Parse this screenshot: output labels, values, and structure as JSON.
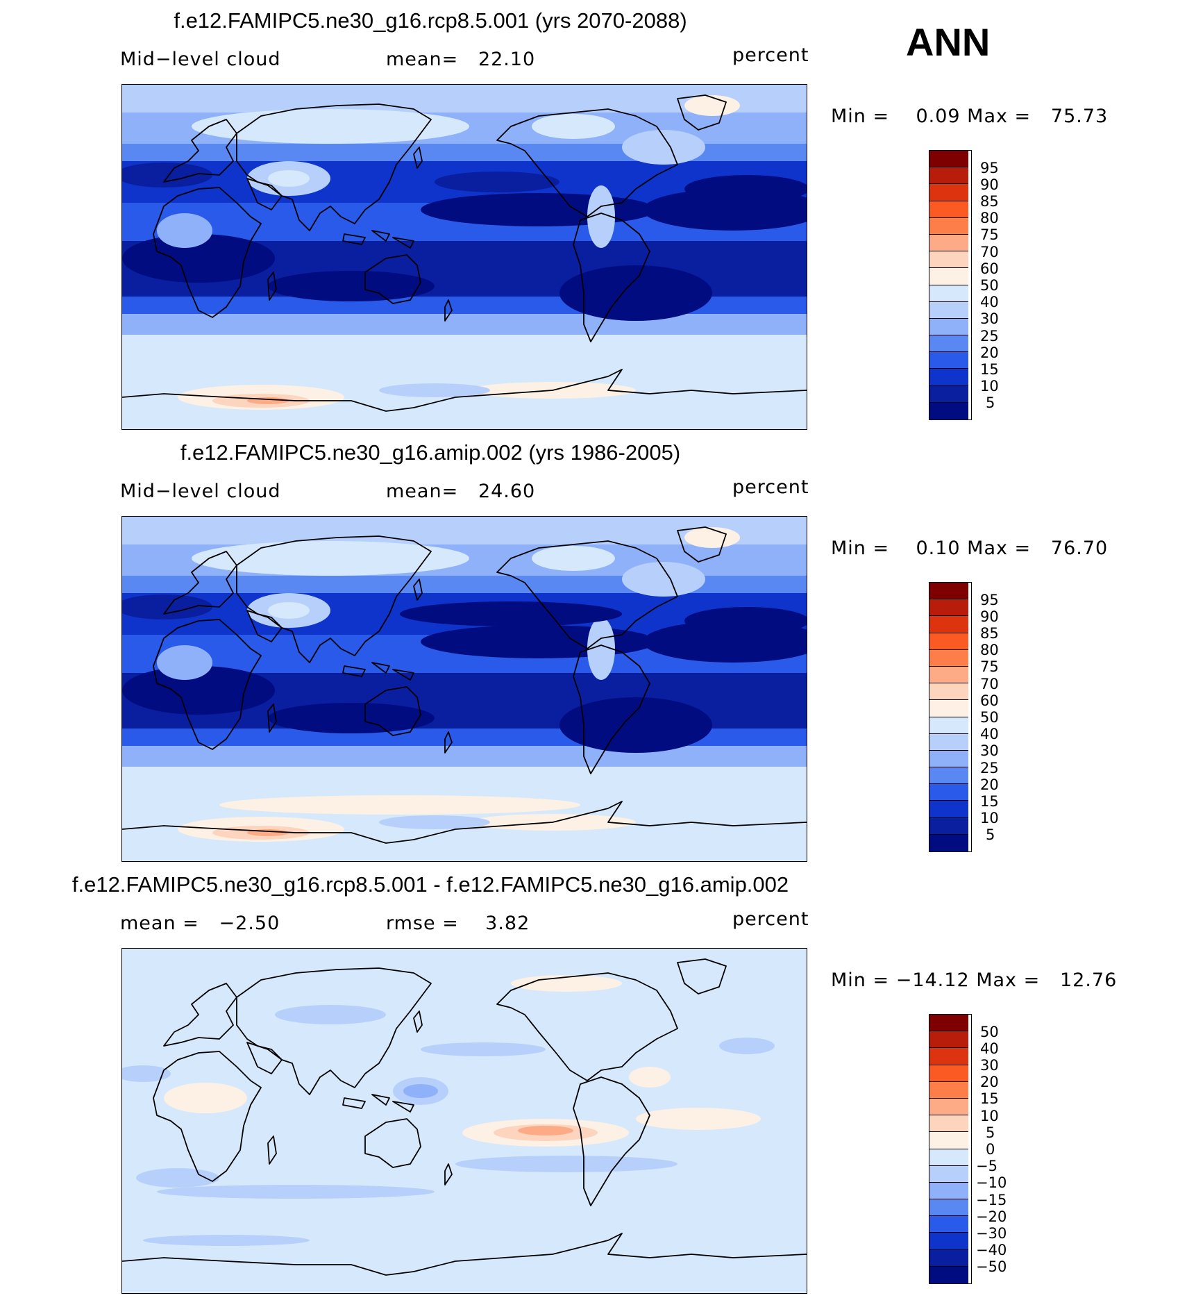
{
  "season": "ANN",
  "panels": [
    {
      "title": "f.e12.FAMIPC5.ne30_g16.rcp8.5.001 (yrs 2070-2088)",
      "left_label": "Mid−level cloud",
      "center_label": "mean=   22.10",
      "units": "percent",
      "minmax": "Min =    0.09 Max =   75.73",
      "colorbar": {
        "labels": [
          "95",
          "90",
          "85",
          "80",
          "75",
          "70",
          "60",
          "50",
          "40",
          "30",
          "25",
          "20",
          "15",
          "10",
          "5"
        ],
        "colors": [
          "#7f0000",
          "#b81c0b",
          "#dd330f",
          "#fb5a23",
          "#fd7e48",
          "#fdab87",
          "#fdd4bd",
          "#fdf0e4",
          "#d6e8fc",
          "#b6d0fb",
          "#8fb1f9",
          "#5a88f3",
          "#2a5ae9",
          "#0f34cc",
          "#0a1ea0",
          "#000c80"
        ]
      },
      "map_field": "model-future"
    },
    {
      "title": "f.e12.FAMIPC5.ne30_g16.amip.002 (yrs 1986-2005)",
      "left_label": "Mid−level cloud",
      "center_label": "mean=   24.60",
      "units": "percent",
      "minmax": "Min =    0.10 Max =   76.70",
      "colorbar": {
        "labels": [
          "95",
          "90",
          "85",
          "80",
          "75",
          "70",
          "60",
          "50",
          "40",
          "30",
          "25",
          "20",
          "15",
          "10",
          "5"
        ],
        "colors": [
          "#7f0000",
          "#b81c0b",
          "#dd330f",
          "#fb5a23",
          "#fd7e48",
          "#fdab87",
          "#fdd4bd",
          "#fdf0e4",
          "#d6e8fc",
          "#b6d0fb",
          "#8fb1f9",
          "#5a88f3",
          "#2a5ae9",
          "#0f34cc",
          "#0a1ea0",
          "#000c80"
        ]
      },
      "map_field": "model-historical"
    },
    {
      "title": "f.e12.FAMIPC5.ne30_g16.rcp8.5.001 - f.e12.FAMIPC5.ne30_g16.amip.002",
      "left_label": "mean =   −2.50",
      "center_label": "rmse =    3.82",
      "units": "percent",
      "minmax": "Min = −14.12 Max =   12.76",
      "colorbar": {
        "labels": [
          "50",
          "40",
          "30",
          "20",
          "15",
          "10",
          "5",
          "0",
          "−5",
          "−10",
          "−15",
          "−20",
          "−30",
          "−40",
          "−50"
        ],
        "colors": [
          "#7f0000",
          "#b81c0b",
          "#dd330f",
          "#fb5a23",
          "#fd7e48",
          "#fdab87",
          "#fdd4bd",
          "#fdf0e4",
          "#d6e8fc",
          "#b6d0fb",
          "#8fb1f9",
          "#5a88f3",
          "#2a5ae9",
          "#0f34cc",
          "#0a1ea0",
          "#000c80"
        ]
      },
      "map_field": "difference"
    }
  ]
}
